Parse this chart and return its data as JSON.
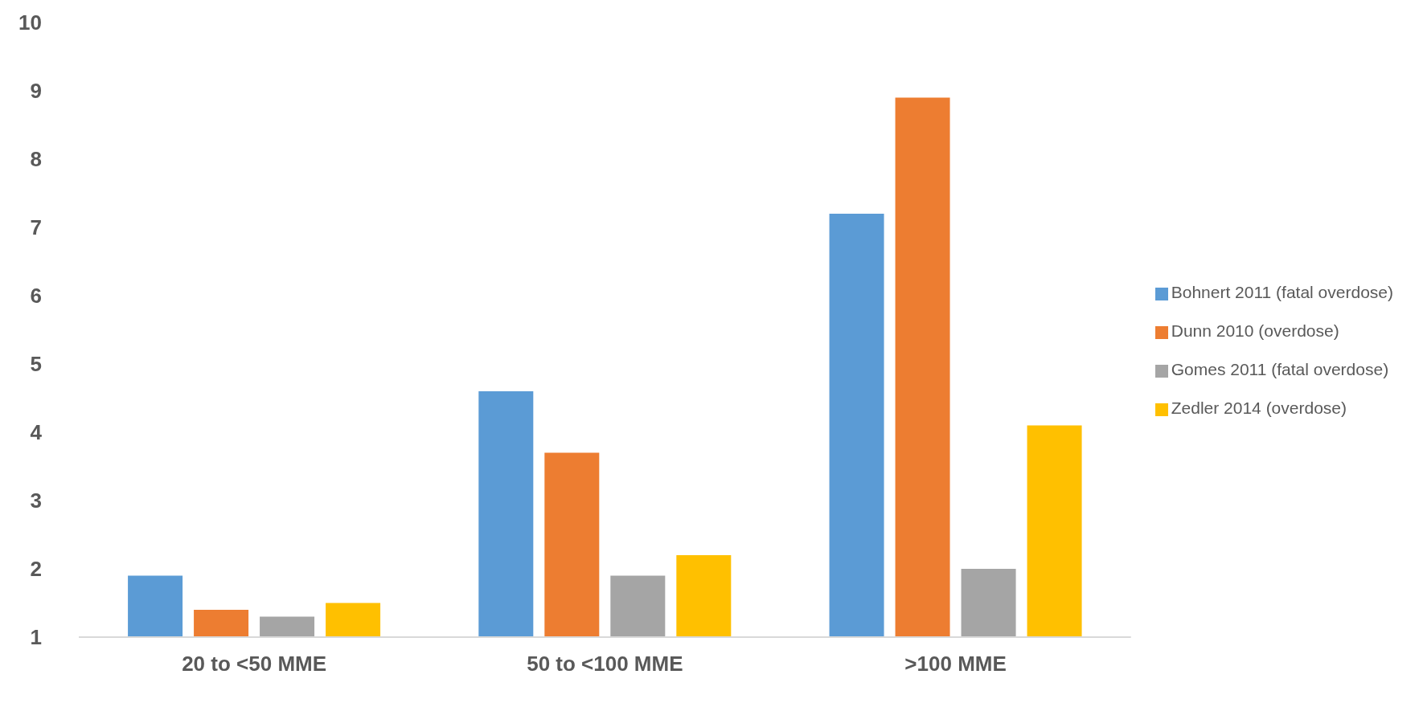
{
  "chart_data": {
    "type": "bar",
    "categories": [
      "20 to <50 MME",
      "50 to <100 MME",
      ">100 MME"
    ],
    "series": [
      {
        "name": "Bohnert 2011 (fatal overdose)",
        "color": "#5b9bd5",
        "values": [
          1.9,
          4.6,
          7.2
        ]
      },
      {
        "name": "Dunn 2010 (overdose)",
        "color": "#ed7d31",
        "values": [
          1.4,
          3.7,
          8.9
        ]
      },
      {
        "name": "Gomes 2011 (fatal overdose)",
        "color": "#a5a5a5",
        "values": [
          1.3,
          1.9,
          2.0
        ]
      },
      {
        "name": "Zedler 2014 (overdose)",
        "color": "#ffc000",
        "values": [
          1.5,
          2.2,
          4.1
        ]
      }
    ],
    "ylim": [
      1,
      10
    ],
    "yticks": [
      1,
      2,
      3,
      4,
      5,
      6,
      7,
      8,
      9,
      10
    ],
    "grid": false,
    "legend": "right"
  }
}
